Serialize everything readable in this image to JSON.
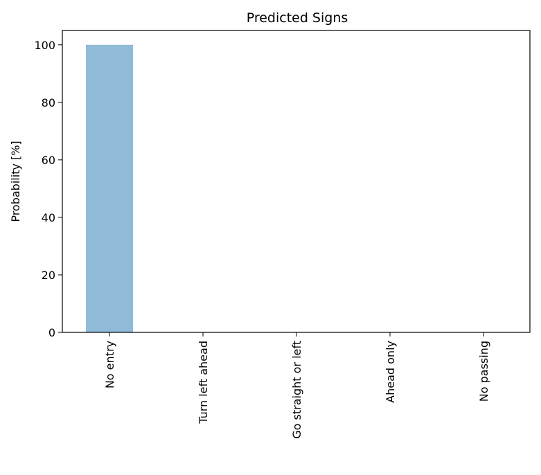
{
  "chart_data": {
    "type": "bar",
    "title": "Predicted Signs",
    "xlabel": "",
    "ylabel": "Probability [%]",
    "categories": [
      "No entry",
      "Turn left ahead",
      "Go straight or left",
      "Ahead only",
      "No passing"
    ],
    "values": [
      100,
      0,
      0,
      0,
      0
    ],
    "ylim": [
      0,
      105
    ],
    "yticks": [
      0,
      20,
      40,
      60,
      80,
      100
    ],
    "bar_color": "#8fbbd9",
    "grid": false,
    "legend": "none"
  }
}
